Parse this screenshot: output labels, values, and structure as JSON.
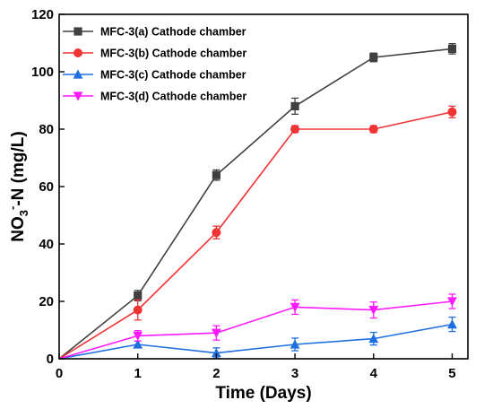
{
  "chart_data": {
    "type": "line",
    "xlabel": "Time (Days)",
    "ylabel": {
      "main": "NO",
      "sub": "3",
      "sup": "-",
      "rest": "-N (mg/L)"
    },
    "xlim": [
      0,
      5.2
    ],
    "ylim": [
      0,
      120
    ],
    "x_ticks": [
      0,
      1,
      2,
      3,
      4,
      5
    ],
    "y_ticks": [
      0,
      20,
      40,
      60,
      80,
      100,
      120
    ],
    "grid": false,
    "legend_position": "top-left",
    "x": [
      0,
      1,
      2,
      3,
      4,
      5
    ],
    "series": [
      {
        "name": "MFC-3(a) Cathode chamber",
        "color": "#404040",
        "marker": "square",
        "values": [
          0,
          22,
          64,
          88,
          105,
          108
        ],
        "errors": [
          0,
          1.8,
          1.8,
          2.8,
          1.5,
          1.8
        ]
      },
      {
        "name": "MFC-3(b) Cathode chamber",
        "color": "#f03434",
        "marker": "circle",
        "values": [
          0,
          17,
          44,
          80,
          80,
          86
        ],
        "errors": [
          0,
          3.5,
          2.2,
          1.2,
          1.2,
          2.0
        ]
      },
      {
        "name": "MFC-3(c) Cathode chamber",
        "color": "#1f6fe0",
        "marker": "triangle-up",
        "values": [
          0,
          5,
          2,
          5,
          7,
          12
        ],
        "errors": [
          0,
          1.2,
          1.8,
          2.2,
          2.2,
          2.5
        ]
      },
      {
        "name": "MFC-3(d) Cathode chamber",
        "color": "#ff1aff",
        "marker": "triangle-down",
        "values": [
          0,
          8,
          9,
          18,
          17,
          20
        ],
        "errors": [
          0,
          1.8,
          2.5,
          2.5,
          2.8,
          2.5
        ]
      }
    ]
  }
}
